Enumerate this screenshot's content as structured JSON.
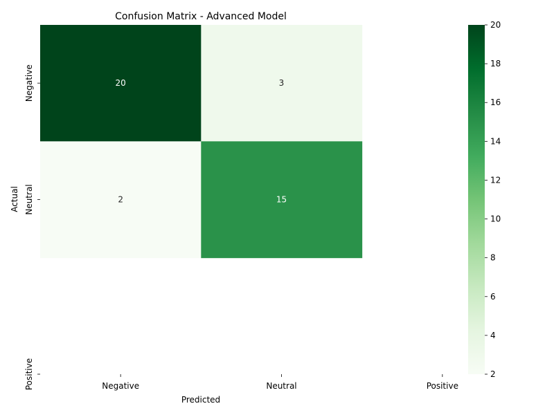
{
  "chart_data": {
    "type": "heatmap",
    "title": "Confusion Matrix - Advanced Model",
    "xlabel": "Predicted",
    "ylabel": "Actual",
    "x_categories": [
      "Negative",
      "Neutral",
      "Positive"
    ],
    "y_categories": [
      "Negative",
      "Neutral",
      "Positive"
    ],
    "matrix": [
      [
        20,
        3,
        null
      ],
      [
        2,
        15,
        null
      ],
      [
        null,
        null,
        null
      ]
    ],
    "colormap": "Greens",
    "colorbar": {
      "min": 2,
      "max": 20,
      "ticks": [
        2,
        4,
        6,
        8,
        10,
        12,
        14,
        16,
        18,
        20
      ]
    },
    "annotations": true
  },
  "colors": {
    "low": "#f7fcf5",
    "high": "#00441b"
  }
}
